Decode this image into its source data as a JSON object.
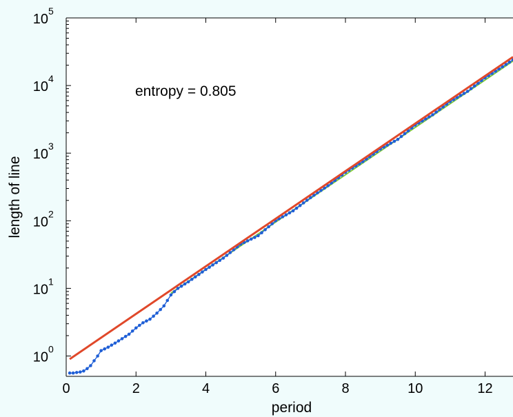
{
  "chart_data": {
    "type": "line",
    "xlabel": "period",
    "ylabel": "length of line",
    "annotation": "entropy = 0.805",
    "xlim": [
      0,
      12.8
    ],
    "ylim": [
      0.5,
      100000
    ],
    "y_scale": "log",
    "grid": false,
    "x_ticks": [
      0,
      2,
      4,
      6,
      8,
      10,
      12
    ],
    "x_tick_labels": [
      "0",
      "2",
      "4",
      "6",
      "8",
      "10",
      "12"
    ],
    "y_ticks": [
      1,
      10,
      100,
      1000,
      10000,
      100000
    ],
    "y_tick_base": "10",
    "y_tick_exponents": [
      "0",
      "1",
      "2",
      "3",
      "4",
      "5"
    ],
    "colors": {
      "dots": "#1f5fd6",
      "fit": "#e0482a",
      "green": "#7cc83c",
      "background": "#f0fcfc",
      "plot_area": "#ffffff"
    },
    "series": [
      {
        "style": "dotted-line",
        "x": [
          0.1,
          0.2,
          0.3,
          0.4,
          0.5,
          0.6,
          0.7,
          0.8,
          0.9,
          1.0,
          1.2,
          1.4,
          1.6,
          1.8,
          2.0,
          2.2,
          2.4,
          2.6,
          2.8,
          3.0,
          3.2,
          3.5,
          4.0,
          4.5,
          5.0,
          5.5,
          6.0,
          6.5,
          7.0,
          7.5,
          8.0,
          8.5,
          9.0,
          9.5,
          10.0,
          10.5,
          11.0,
          11.5,
          12.0,
          12.5,
          12.8
        ],
        "y": [
          0.56,
          0.56,
          0.57,
          0.58,
          0.6,
          0.65,
          0.72,
          0.85,
          1.0,
          1.2,
          1.35,
          1.55,
          1.8,
          2.1,
          2.6,
          3.1,
          3.5,
          4.3,
          5.5,
          8.0,
          10.0,
          12.5,
          19.0,
          28.0,
          45.0,
          60.0,
          100.0,
          140.0,
          220.0,
          330.0,
          520.0,
          750.0,
          1150.0,
          1600.0,
          2600.0,
          3700.0,
          5800.0,
          8200.0,
          13000.0,
          19000.0,
          24000.0
        ]
      },
      {
        "style": "line",
        "x": [
          3.0,
          12.8
        ],
        "y": [
          8.5,
          23000
        ]
      },
      {
        "style": "fit-line",
        "x": [
          0.1,
          12.8
        ],
        "y": [
          0.9,
          26500
        ]
      }
    ]
  }
}
